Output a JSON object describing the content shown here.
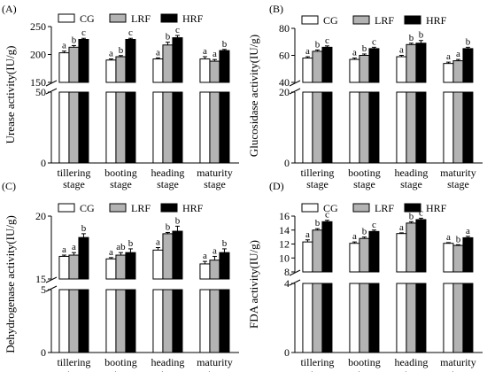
{
  "chart_data": [
    {
      "type": "bar",
      "panel_label": "(A)",
      "categories": [
        "tillering stage",
        "booting stage",
        "heading stage",
        "maturity stage"
      ],
      "ylabel": "Urease activity(IU/g)",
      "ylim_lower": [
        0,
        50
      ],
      "ylim_upper": [
        150,
        250
      ],
      "yticks_lower": [
        0,
        50
      ],
      "yticks_upper": [
        150,
        200,
        250
      ],
      "legend": [
        "CG",
        "LRF",
        "HRF"
      ],
      "series": [
        {
          "name": "CG",
          "values": [
            203,
            190,
            192,
            192
          ],
          "errors": [
            3,
            2,
            2,
            4
          ],
          "letters": [
            "a",
            "a",
            "a",
            "a"
          ]
        },
        {
          "name": "LRF",
          "values": [
            213,
            196,
            217,
            188
          ],
          "errors": [
            3,
            2,
            5,
            3
          ],
          "letters": [
            "b",
            "b",
            "b",
            "a"
          ]
        },
        {
          "name": "HRF",
          "values": [
            227,
            227,
            230,
            207
          ],
          "errors": [
            2,
            2,
            4,
            2
          ],
          "letters": [
            "c",
            "c",
            "c",
            "b"
          ]
        }
      ]
    },
    {
      "type": "bar",
      "panel_label": "(B)",
      "categories": [
        "tillering stage",
        "booting stage",
        "heading stage",
        "maturity stage"
      ],
      "ylabel": "Glucosidase activity(IU/g)",
      "ylim_lower": [
        0,
        20
      ],
      "ylim_upper": [
        40,
        80
      ],
      "yticks_lower": [
        0,
        20
      ],
      "yticks_upper": [
        40,
        60,
        80
      ],
      "legend": [
        "CG",
        "LRF",
        "HRF"
      ],
      "series": [
        {
          "name": "CG",
          "values": [
            58,
            57,
            59,
            54
          ],
          "errors": [
            1,
            1,
            1,
            1
          ],
          "letters": [
            "a",
            "a",
            "a",
            "a"
          ]
        },
        {
          "name": "LRF",
          "values": [
            63,
            60,
            68,
            56
          ],
          "errors": [
            1,
            1,
            1,
            1
          ],
          "letters": [
            "b",
            "b",
            "b",
            "a"
          ]
        },
        {
          "name": "HRF",
          "values": [
            66,
            65,
            69,
            65
          ],
          "errors": [
            1,
            1,
            2,
            1
          ],
          "letters": [
            "c",
            "c",
            "b",
            "b"
          ]
        }
      ]
    },
    {
      "type": "bar",
      "panel_label": "(C)",
      "categories": [
        "tillering stage",
        "booting stage",
        "heading stage",
        "maturity stage"
      ],
      "ylabel": "Dehydrogenase activity(IU/g)",
      "ylim_lower": [
        0,
        5
      ],
      "ylim_upper": [
        15,
        20
      ],
      "yticks_lower": [
        0,
        5
      ],
      "yticks_upper": [
        15,
        20
      ],
      "legend": [
        "CG",
        "LRF",
        "HRF"
      ],
      "series": [
        {
          "name": "CG",
          "values": [
            16.8,
            16.6,
            17.3,
            16.2
          ],
          "errors": [
            0.1,
            0.1,
            0.2,
            0.2
          ],
          "letters": [
            "a",
            "a",
            "a",
            "a"
          ]
        },
        {
          "name": "LRF",
          "values": [
            16.9,
            16.9,
            18.6,
            16.5
          ],
          "errors": [
            0.2,
            0.2,
            0.1,
            0.3
          ],
          "letters": [
            "a",
            "ab",
            "b",
            "a"
          ]
        },
        {
          "name": "HRF",
          "values": [
            18.3,
            17.1,
            18.8,
            17.1
          ],
          "errors": [
            0.3,
            0.3,
            0.4,
            0.3
          ],
          "letters": [
            "b",
            "b",
            "b",
            "b"
          ]
        }
      ]
    },
    {
      "type": "bar",
      "panel_label": "(D)",
      "categories": [
        "tillering stage",
        "booting stage",
        "heading stage",
        "maturity stage"
      ],
      "ylabel": "FDA activity(IU/g)",
      "ylim_lower": [
        0,
        4
      ],
      "ylim_upper": [
        8,
        16
      ],
      "yticks_lower": [
        0,
        4
      ],
      "yticks_upper": [
        8,
        10,
        12,
        14,
        16
      ],
      "legend": [
        "CG",
        "LRF",
        "HRF"
      ],
      "series": [
        {
          "name": "CG",
          "values": [
            12.3,
            12.1,
            13.5,
            12.1
          ],
          "errors": [
            0.3,
            0.2,
            0.1,
            0.1
          ],
          "letters": [
            "a",
            "a",
            "a",
            "a"
          ]
        },
        {
          "name": "LRF",
          "values": [
            14.0,
            12.8,
            15.0,
            11.8
          ],
          "errors": [
            0.2,
            0.2,
            0.2,
            0.1
          ],
          "letters": [
            "b",
            "b",
            "b",
            "b"
          ]
        },
        {
          "name": "HRF",
          "values": [
            15.2,
            13.8,
            15.5,
            12.9
          ],
          "errors": [
            0.2,
            0.2,
            0.2,
            0.2
          ],
          "letters": [
            "c",
            "c",
            "c",
            "a"
          ]
        }
      ]
    }
  ],
  "colors": {
    "CG": "#ffffff",
    "LRF": "#b3b3b3",
    "HRF": "#000000"
  }
}
